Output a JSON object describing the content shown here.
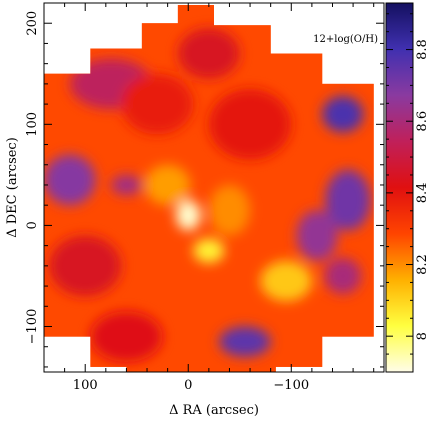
{
  "chart_data": {
    "type": "heatmap",
    "title": "",
    "xlabel": "Δ RA (arcsec)",
    "ylabel": "Δ DEC (arcsec)",
    "annotation": "12+log(O/H)",
    "xlim": [
      140,
      -190
    ],
    "ylim": [
      -145,
      220
    ],
    "x_ticks": [
      100,
      0,
      -100
    ],
    "x_tick_labels": [
      "100",
      "0",
      "−100"
    ],
    "y_ticks": [
      -100,
      0,
      100,
      200
    ],
    "y_tick_labels": [
      "−100",
      "0",
      "100",
      "200"
    ],
    "colorbar": {
      "range": [
        7.9,
        8.93
      ],
      "ticks": [
        8,
        8.2,
        8.4,
        8.6,
        8.8
      ],
      "tick_labels": [
        "8",
        "8.2",
        "8.4",
        "8.6",
        "8.8"
      ],
      "colormap": [
        "#fffde8",
        "#ffff40",
        "#ffb000",
        "#ff4400",
        "#e01010",
        "#c0205a",
        "#8a3aa0",
        "#4030b0",
        "#141060"
      ]
    },
    "map_shape": [
      [
        10,
        218
      ],
      [
        -25,
        218
      ],
      [
        -25,
        198
      ],
      [
        -80,
        198
      ],
      [
        -80,
        170
      ],
      [
        -130,
        170
      ],
      [
        -130,
        140
      ],
      [
        -180,
        140
      ],
      [
        -180,
        -110
      ],
      [
        -130,
        -110
      ],
      [
        -130,
        -140
      ],
      [
        -85,
        -140
      ],
      [
        -85,
        -155
      ],
      [
        -25,
        -155
      ],
      [
        -25,
        -175
      ],
      [
        10,
        -175
      ],
      [
        10,
        -155
      ],
      [
        60,
        -155
      ],
      [
        60,
        -140
      ],
      [
        95,
        -140
      ],
      [
        95,
        -110
      ],
      [
        140,
        -110
      ],
      [
        140,
        150
      ],
      [
        95,
        150
      ],
      [
        95,
        175
      ],
      [
        45,
        175
      ],
      [
        45,
        200
      ],
      [
        10,
        200
      ]
    ],
    "background_level": 8.28,
    "regions": [
      {
        "ra": 0,
        "dec": 10,
        "rx": 12,
        "ry": 15,
        "level": 7.92
      },
      {
        "ra": -20,
        "dec": -25,
        "rx": 15,
        "ry": 12,
        "level": 8.05
      },
      {
        "ra": 20,
        "dec": 40,
        "rx": 22,
        "ry": 20,
        "level": 8.18
      },
      {
        "ra": -40,
        "dec": 15,
        "rx": 20,
        "ry": 25,
        "level": 8.2
      },
      {
        "ra": -95,
        "dec": -55,
        "rx": 25,
        "ry": 20,
        "level": 8.12
      },
      {
        "ra": -150,
        "dec": 110,
        "rx": 20,
        "ry": 18,
        "level": 8.78
      },
      {
        "ra": -155,
        "dec": 25,
        "rx": 22,
        "ry": 30,
        "level": 8.72
      },
      {
        "ra": -125,
        "dec": -10,
        "rx": 20,
        "ry": 25,
        "level": 8.65
      },
      {
        "ra": -150,
        "dec": -50,
        "rx": 18,
        "ry": 18,
        "level": 8.6
      },
      {
        "ra": -55,
        "dec": -115,
        "rx": 25,
        "ry": 15,
        "level": 8.75
      },
      {
        "ra": 115,
        "dec": 45,
        "rx": 25,
        "ry": 25,
        "level": 8.68
      },
      {
        "ra": 60,
        "dec": 40,
        "rx": 15,
        "ry": 10,
        "level": 8.62
      },
      {
        "ra": 75,
        "dec": 140,
        "rx": 40,
        "ry": 25,
        "level": 8.55
      },
      {
        "ra": -20,
        "dec": 170,
        "rx": 30,
        "ry": 25,
        "level": 8.45
      },
      {
        "ra": 30,
        "dec": 120,
        "rx": 35,
        "ry": 30,
        "level": 8.38
      },
      {
        "ra": 100,
        "dec": -40,
        "rx": 35,
        "ry": 30,
        "level": 8.45
      },
      {
        "ra": 60,
        "dec": -110,
        "rx": 35,
        "ry": 25,
        "level": 8.42
      },
      {
        "ra": -60,
        "dec": 100,
        "rx": 40,
        "ry": 35,
        "level": 8.4
      }
    ]
  }
}
